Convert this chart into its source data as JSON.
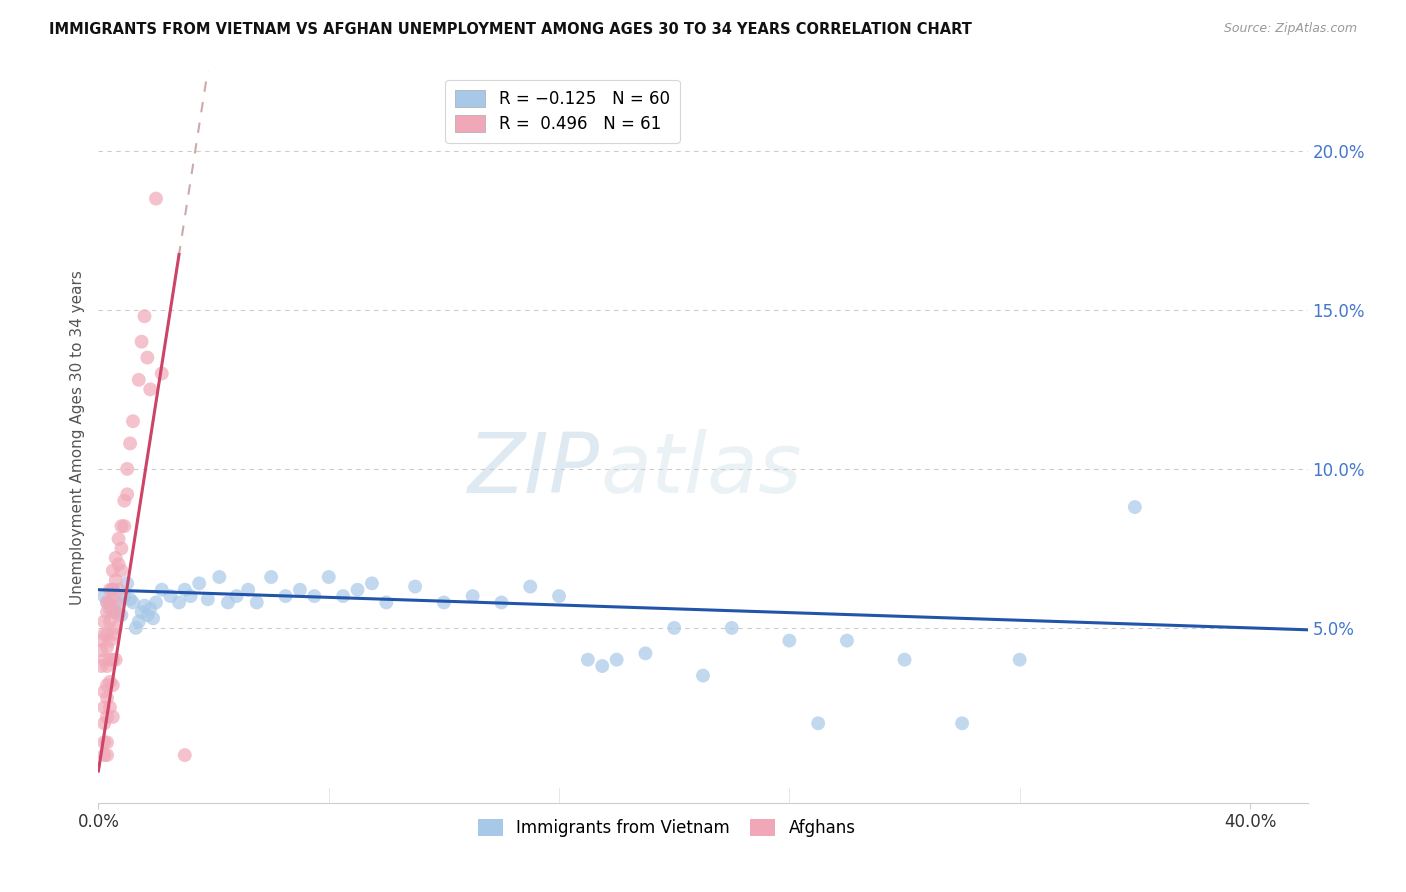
{
  "title": "IMMIGRANTS FROM VIETNAM VS AFGHAN UNEMPLOYMENT AMONG AGES 30 TO 34 YEARS CORRELATION CHART",
  "source": "Source: ZipAtlas.com",
  "ylabel": "Unemployment Among Ages 30 to 34 years",
  "xlim": [
    0.0,
    0.42
  ],
  "ylim": [
    -0.005,
    0.225
  ],
  "yaxis_ticks": [
    0.05,
    0.1,
    0.15,
    0.2
  ],
  "yaxis_tick_labels": [
    "5.0%",
    "10.0%",
    "15.0%",
    "20.0%"
  ],
  "xaxis_ticks": [
    0.0,
    0.4
  ],
  "xaxis_tick_labels": [
    "0.0%",
    "40.0%"
  ],
  "vietnam_color": "#a8c8e8",
  "afghan_color": "#f0a8b8",
  "vietnam_trendline_color": "#2255aa",
  "afghan_trendline_solid_color": "#cc4466",
  "afghan_trendline_dashed_color": "#ccaaaa",
  "watermark_zip_color": "#b0c8e0",
  "watermark_atlas_color": "#c8d8e8",
  "vietnam_scatter": [
    [
      0.002,
      0.06
    ],
    [
      0.003,
      0.058
    ],
    [
      0.004,
      0.056
    ],
    [
      0.005,
      0.062
    ],
    [
      0.006,
      0.055
    ],
    [
      0.007,
      0.058
    ],
    [
      0.008,
      0.054
    ],
    [
      0.009,
      0.06
    ],
    [
      0.01,
      0.064
    ],
    [
      0.011,
      0.059
    ],
    [
      0.012,
      0.058
    ],
    [
      0.013,
      0.05
    ],
    [
      0.014,
      0.052
    ],
    [
      0.015,
      0.055
    ],
    [
      0.016,
      0.057
    ],
    [
      0.017,
      0.054
    ],
    [
      0.018,
      0.056
    ],
    [
      0.019,
      0.053
    ],
    [
      0.02,
      0.058
    ],
    [
      0.022,
      0.062
    ],
    [
      0.025,
      0.06
    ],
    [
      0.028,
      0.058
    ],
    [
      0.03,
      0.062
    ],
    [
      0.032,
      0.06
    ],
    [
      0.035,
      0.064
    ],
    [
      0.038,
      0.059
    ],
    [
      0.042,
      0.066
    ],
    [
      0.045,
      0.058
    ],
    [
      0.048,
      0.06
    ],
    [
      0.052,
      0.062
    ],
    [
      0.055,
      0.058
    ],
    [
      0.06,
      0.066
    ],
    [
      0.065,
      0.06
    ],
    [
      0.07,
      0.062
    ],
    [
      0.075,
      0.06
    ],
    [
      0.08,
      0.066
    ],
    [
      0.085,
      0.06
    ],
    [
      0.09,
      0.062
    ],
    [
      0.095,
      0.064
    ],
    [
      0.1,
      0.058
    ],
    [
      0.11,
      0.063
    ],
    [
      0.12,
      0.058
    ],
    [
      0.13,
      0.06
    ],
    [
      0.14,
      0.058
    ],
    [
      0.15,
      0.063
    ],
    [
      0.16,
      0.06
    ],
    [
      0.17,
      0.04
    ],
    [
      0.175,
      0.038
    ],
    [
      0.18,
      0.04
    ],
    [
      0.19,
      0.042
    ],
    [
      0.2,
      0.05
    ],
    [
      0.21,
      0.035
    ],
    [
      0.22,
      0.05
    ],
    [
      0.24,
      0.046
    ],
    [
      0.25,
      0.02
    ],
    [
      0.26,
      0.046
    ],
    [
      0.28,
      0.04
    ],
    [
      0.3,
      0.02
    ],
    [
      0.32,
      0.04
    ],
    [
      0.36,
      0.088
    ]
  ],
  "afghan_scatter": [
    [
      0.001,
      0.046
    ],
    [
      0.001,
      0.043
    ],
    [
      0.001,
      0.038
    ],
    [
      0.002,
      0.052
    ],
    [
      0.002,
      0.048
    ],
    [
      0.002,
      0.04
    ],
    [
      0.002,
      0.03
    ],
    [
      0.002,
      0.025
    ],
    [
      0.002,
      0.02
    ],
    [
      0.002,
      0.014
    ],
    [
      0.002,
      0.01
    ],
    [
      0.003,
      0.058
    ],
    [
      0.003,
      0.055
    ],
    [
      0.003,
      0.048
    ],
    [
      0.003,
      0.044
    ],
    [
      0.003,
      0.038
    ],
    [
      0.003,
      0.032
    ],
    [
      0.003,
      0.028
    ],
    [
      0.003,
      0.022
    ],
    [
      0.003,
      0.014
    ],
    [
      0.003,
      0.01
    ],
    [
      0.004,
      0.062
    ],
    [
      0.004,
      0.058
    ],
    [
      0.004,
      0.052
    ],
    [
      0.004,
      0.046
    ],
    [
      0.004,
      0.04
    ],
    [
      0.004,
      0.033
    ],
    [
      0.004,
      0.025
    ],
    [
      0.005,
      0.068
    ],
    [
      0.005,
      0.062
    ],
    [
      0.005,
      0.055
    ],
    [
      0.005,
      0.048
    ],
    [
      0.005,
      0.04
    ],
    [
      0.005,
      0.032
    ],
    [
      0.005,
      0.022
    ],
    [
      0.006,
      0.072
    ],
    [
      0.006,
      0.065
    ],
    [
      0.006,
      0.058
    ],
    [
      0.006,
      0.05
    ],
    [
      0.006,
      0.04
    ],
    [
      0.007,
      0.078
    ],
    [
      0.007,
      0.07
    ],
    [
      0.007,
      0.062
    ],
    [
      0.007,
      0.054
    ],
    [
      0.008,
      0.082
    ],
    [
      0.008,
      0.075
    ],
    [
      0.008,
      0.068
    ],
    [
      0.009,
      0.09
    ],
    [
      0.009,
      0.082
    ],
    [
      0.01,
      0.1
    ],
    [
      0.01,
      0.092
    ],
    [
      0.011,
      0.108
    ],
    [
      0.012,
      0.115
    ],
    [
      0.014,
      0.128
    ],
    [
      0.015,
      0.14
    ],
    [
      0.016,
      0.148
    ],
    [
      0.017,
      0.135
    ],
    [
      0.018,
      0.125
    ],
    [
      0.02,
      0.185
    ],
    [
      0.022,
      0.13
    ],
    [
      0.03,
      0.01
    ]
  ],
  "afghan_trend_x_start": 0.0,
  "afghan_trend_x_solid_end": 0.028,
  "afghan_trend_x_dashed_end": 0.42,
  "afghan_trend_slope": 5.8,
  "afghan_trend_intercept": 0.005,
  "vietnam_trend_x_start": 0.0,
  "vietnam_trend_x_end": 0.42,
  "vietnam_trend_slope": -0.03,
  "vietnam_trend_intercept": 0.062
}
